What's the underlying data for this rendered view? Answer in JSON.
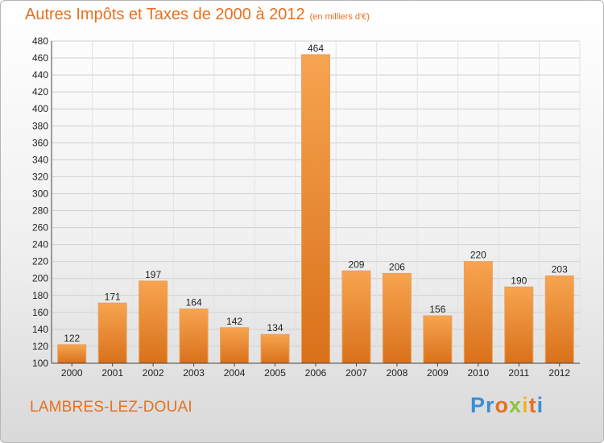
{
  "header": {
    "title": "Autres Impôts et Taxes de 2000 à 2012",
    "subtitle": "(en milliers d'€)"
  },
  "footer": {
    "commune": "LAMBRES-LEZ-DOUAI",
    "logo_text": "Proxiti"
  },
  "colors": {
    "accent": "#e8701e",
    "bar_light": "#f7a450",
    "bar_dark": "#e07b20"
  },
  "chart_data": {
    "type": "bar",
    "title": "Autres Impôts et Taxes de 2000 à 2012",
    "subtitle": "(en milliers d'€)",
    "categories": [
      "2000",
      "2001",
      "2002",
      "2003",
      "2004",
      "2005",
      "2006",
      "2007",
      "2008",
      "2009",
      "2010",
      "2011",
      "2012"
    ],
    "values": [
      122,
      171,
      197,
      164,
      142,
      134,
      464,
      209,
      206,
      156,
      220,
      190,
      203
    ],
    "ylim": [
      100,
      480
    ],
    "yticks": [
      100,
      120,
      140,
      160,
      180,
      200,
      220,
      240,
      260,
      280,
      300,
      320,
      340,
      360,
      380,
      400,
      420,
      440,
      460,
      480
    ],
    "grid": true,
    "legend": "none"
  }
}
